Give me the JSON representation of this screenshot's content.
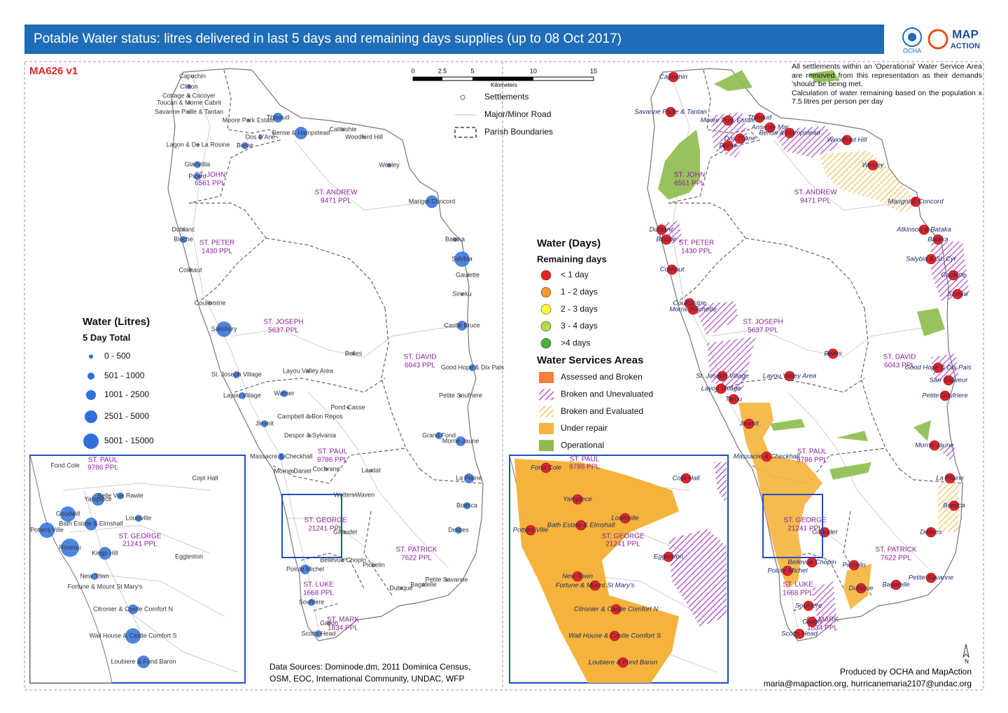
{
  "header": {
    "title": "Potable Water status: litres delivered in last 5 days and remaining days supplies (up to 08 Oct 2017)",
    "logos": [
      "OCHA",
      "MAP",
      "ACTION"
    ]
  },
  "map_id": "MA626  v1",
  "scale_bar": {
    "ticks": [
      "0",
      "2.5",
      "5",
      "10",
      "15"
    ],
    "unit": "Kilometers"
  },
  "reference_legend": [
    "Settlements",
    "Major/Minor Road",
    "Parish Boundaries"
  ],
  "litres_legend": {
    "title": "Water (Litres)",
    "subtitle": "5 Day Total",
    "classes": [
      "0 - 500",
      "501 - 1000",
      "1001 - 2500",
      "2501 - 5000",
      "5001 - 15000"
    ],
    "color": "#2f6fdc"
  },
  "days_legend": {
    "title": "Water (Days)",
    "subtitle": "Remaining days",
    "classes": [
      {
        "label": "< 1 day",
        "color": "#e52421"
      },
      {
        "label": "1 - 2 days",
        "color": "#f39a2c"
      },
      {
        "label": "2 - 3 days",
        "color": "#ffff33"
      },
      {
        "label": "3 - 4  days",
        "color": "#b5d84a"
      },
      {
        "label": ">4 days",
        "color": "#4cae3b"
      }
    ]
  },
  "areas_legend": {
    "title": "Water Services Areas",
    "items": [
      {
        "label": "Assessed and Broken",
        "color": "#f47f3a",
        "pattern": "solid"
      },
      {
        "label": "Broken and Unevaluated",
        "color": "#a83bbf",
        "pattern": "hatch"
      },
      {
        "label": "Broken and Evaluated",
        "color": "#f0b848",
        "pattern": "hatch"
      },
      {
        "label": "Under repair",
        "color": "#f6b33b",
        "pattern": "solid"
      },
      {
        "label": "Operational",
        "color": "#8dbb4b",
        "pattern": "solid"
      }
    ]
  },
  "note": [
    "All settlements within an 'Operational' Water Service Area are removed from this representation as their demands 'should' be being met.",
    "Calculation of water remaining based on the population x 7.5 litres per person per day"
  ],
  "parishes": [
    {
      "name": "ST. JOHN",
      "population": "6561 PPL"
    },
    {
      "name": "ST. ANDREW",
      "population": "9471 PPL"
    },
    {
      "name": "ST. PETER",
      "population": "1430 PPL"
    },
    {
      "name": "ST. JOSEPH",
      "population": "5637 PPL"
    },
    {
      "name": "ST. DAVID",
      "population": "6043 PPL"
    },
    {
      "name": "ST. PAUL",
      "population": "9786 PPL"
    },
    {
      "name": "ST. GEORGE",
      "population": "21241 PPL"
    },
    {
      "name": "ST. PATRICK",
      "population": "7622 PPL"
    },
    {
      "name": "ST. LUKE",
      "population": "1668 PPL"
    },
    {
      "name": "ST. MARK",
      "population": "1834 PPL"
    }
  ],
  "left_map": {
    "settlements": [
      "Capuchin",
      "Clifton",
      "Cottage & Cocoyer",
      "Toucari & Morne Cabrit",
      "Savanne Paille & Tantan",
      "Thibaud",
      "Moore Park Estate",
      "Dos D'Ane",
      "Borne",
      "Bense & Hampstead",
      "Calibishie",
      "Woodford Hill",
      "Wesley",
      "Lagon & De La Rosine",
      "Glanvillia",
      "Picard",
      "Marigot Concord",
      "Bataka",
      "Salybia",
      "Gaulette",
      "Sineku",
      "Castle Bruce",
      "Good Hope & Dix Pais",
      "Petite Soufriere",
      "Grand Fond",
      "Morne Jaune",
      "La Plaine",
      "Boetica",
      "Delices",
      "Petite Savanne",
      "Bagatelle",
      "Dubique",
      "Pichelin",
      "Bellevue Chopin",
      "Giraudel",
      "Pointe Michel",
      "Soufriere",
      "Galion",
      "Scotts Head",
      "Dublanc",
      "Bioche",
      "Colihaut",
      "Coulibistrie",
      "Salisbury",
      "St. Joseph Village",
      "Layou Village",
      "Jimmit",
      "Belles",
      "Layou Valley Area",
      "Warner",
      "Campbell & Bon Repos",
      "Pond Casse",
      "Despor & Sylvania",
      "Massacre & Checkhall",
      "Morne Daniel",
      "Cochrane",
      "Laudat",
      "Wotten Waven"
    ],
    "inset": [
      "Fond Cole",
      "Copt Hall",
      "Yampiece",
      "Belle Vue Rawle",
      "Goodwill",
      "Louisville",
      "Bath Estate & Elmshall",
      "Potters Ville",
      "Roseau",
      "Kings Hill",
      "Eggleston",
      "New Town",
      "Fortune & Mount St Mary's",
      "Citronier & Castle Comfort N",
      "Wall House & Castle Comfort S",
      "Loubiere & Fond Baron"
    ]
  },
  "right_map": {
    "settlements": [
      "Capuchin",
      "Savanne Paille & Tantan",
      "Moore Park Estate",
      "Dos D'Ane",
      "Borne",
      "Thibaud",
      "Anse de Mai",
      "Bense & Hampstead",
      "Woodford Hill",
      "Wesley",
      "Mangot & Concord",
      "Atkinson & Bataka",
      "Bataka",
      "Salybia & St. Cyr",
      "Gaulette",
      "Sineku",
      "Dublanc",
      "Bioche",
      "Colihaut",
      "Coulibistrie",
      "Morne Rachette",
      "Belles",
      "St. Joseph Village",
      "Layou Valley Area",
      "Layou Village",
      "Tarou",
      "Jimmit",
      "Massacre & Checkhall",
      "Good Hope & Dix Pais",
      "San Sauveur",
      "Petite Soufriere",
      "Morne Jaune",
      "La Plaine",
      "Boetica",
      "Delices",
      "Petite Savanne",
      "Bagatelle",
      "Dubique",
      "Bellevue Chopin",
      "Pichelin",
      "Pointe Michel",
      "Soufriere",
      "Galion",
      "Scotts Head",
      "Giraudel"
    ],
    "inset": [
      "Fond Cole",
      "Copt Hall",
      "Yampiece",
      "Louisville",
      "Bath Estate & Elmshall",
      "Potters Ville",
      "Eggleston",
      "New Town",
      "Fortune & Mount St Mary's",
      "Citronier & Castle Comfort N",
      "Wall House & Castle Comfort S",
      "Loubiere & Fond Baron"
    ]
  },
  "sources": [
    "Data Sources: Dominode.dm, 2011 Dominica Census,",
    "OSM, EOC, International Community, UNDAC, WFP"
  ],
  "credits": [
    "Produced by OCHA and MapAction",
    "maria@mapaction.org, hurricanemaria2107@undac.org"
  ],
  "north": "N"
}
